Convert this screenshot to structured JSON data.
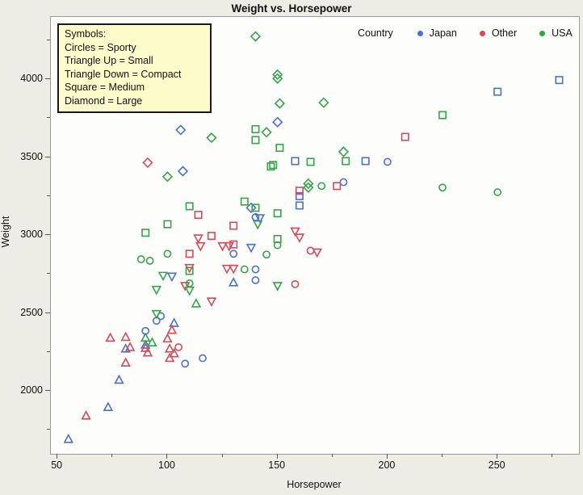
{
  "title": "Weight vs. Horsepower",
  "symbols_legend": {
    "lines": [
      "Symbols:",
      "Circles = Sporty",
      "Triangle Up = Small",
      "Triangle Down = Compact",
      "Square = Medium",
      "Diamond = Large"
    ]
  },
  "country_legend": {
    "label": "Country",
    "items": [
      {
        "label": "Japan",
        "color": "#4a6fd0"
      },
      {
        "label": "Other",
        "color": "#d44a5a"
      },
      {
        "label": "USA",
        "color": "#36a24a"
      }
    ]
  },
  "chart_data": {
    "type": "scatter",
    "title": "Weight vs. Horsepower",
    "xlabel": "Horsepower",
    "ylabel": "Weight",
    "xlim": [
      47,
      287
    ],
    "ylim": [
      1596,
      4400
    ],
    "grid": false,
    "x_ticks_major": [
      50,
      100,
      150,
      200,
      250
    ],
    "x_ticks_minor": [
      75,
      125,
      175,
      225,
      275
    ],
    "y_ticks_major": [
      2000,
      2500,
      3000,
      3500,
      4000
    ],
    "y_ticks_minor": [
      1750,
      2250,
      2750,
      3250,
      3750,
      4250
    ],
    "symbol_map": {
      "Sporty": "circle",
      "Small": "triangle-up",
      "Compact": "triangle-down",
      "Medium": "square",
      "Large": "diamond"
    },
    "series": [
      {
        "name": "Japan",
        "color": "#4a6fd0",
        "points": [
          [
            106,
            3675,
            "Large"
          ],
          [
            107,
            3410,
            "Large"
          ],
          [
            150,
            3725,
            "Large"
          ],
          [
            138,
            3175,
            "Large"
          ],
          [
            158,
            3475,
            "Medium"
          ],
          [
            190,
            3475,
            "Medium"
          ],
          [
            250,
            3920,
            "Medium"
          ],
          [
            278,
            3995,
            "Medium"
          ],
          [
            160,
            3250,
            "Medium"
          ],
          [
            160,
            3190,
            "Medium"
          ],
          [
            200,
            3470,
            "Sporty"
          ],
          [
            180,
            3340,
            "Sporty"
          ],
          [
            140,
            3115,
            "Sporty"
          ],
          [
            130,
            2880,
            "Sporty"
          ],
          [
            140,
            2780,
            "Sporty"
          ],
          [
            140,
            2710,
            "Sporty"
          ],
          [
            97,
            2480,
            "Sporty"
          ],
          [
            95,
            2450,
            "Sporty"
          ],
          [
            90,
            2385,
            "Sporty"
          ],
          [
            108,
            2175,
            "Sporty"
          ],
          [
            116,
            2210,
            "Sporty"
          ],
          [
            142,
            3110,
            "Compact"
          ],
          [
            138,
            2920,
            "Compact"
          ],
          [
            102,
            2735,
            "Compact"
          ],
          [
            130,
            2695,
            "Small"
          ],
          [
            103,
            2435,
            "Small"
          ],
          [
            90,
            2295,
            "Small"
          ],
          [
            81,
            2270,
            "Small"
          ],
          [
            78,
            2070,
            "Small"
          ],
          [
            73,
            1895,
            "Small"
          ],
          [
            55,
            1690,
            "Small"
          ]
        ]
      },
      {
        "name": "Other",
        "color": "#d44a5a",
        "points": [
          [
            91,
            3465,
            "Large"
          ],
          [
            208,
            3630,
            "Medium"
          ],
          [
            177,
            3315,
            "Medium"
          ],
          [
            160,
            3285,
            "Medium"
          ],
          [
            114,
            3130,
            "Medium"
          ],
          [
            120,
            2995,
            "Medium"
          ],
          [
            110,
            2880,
            "Medium"
          ],
          [
            130,
            3060,
            "Medium"
          ],
          [
            130,
            2940,
            "Medium"
          ],
          [
            114,
            2980,
            "Compact"
          ],
          [
            115,
            2930,
            "Compact"
          ],
          [
            125,
            2930,
            "Compact"
          ],
          [
            110,
            2790,
            "Compact"
          ],
          [
            108,
            2675,
            "Compact"
          ],
          [
            120,
            2575,
            "Compact"
          ],
          [
            158,
            3025,
            "Compact"
          ],
          [
            160,
            2985,
            "Compact"
          ],
          [
            128,
            2930,
            "Compact"
          ],
          [
            168,
            2890,
            "Compact"
          ],
          [
            127,
            2785,
            "Compact"
          ],
          [
            130,
            2785,
            "Compact"
          ],
          [
            165,
            2900,
            "Sporty"
          ],
          [
            158,
            2685,
            "Sporty"
          ],
          [
            105,
            2280,
            "Sporty"
          ],
          [
            74,
            2340,
            "Small"
          ],
          [
            81,
            2345,
            "Small"
          ],
          [
            83,
            2280,
            "Small"
          ],
          [
            81,
            2180,
            "Small"
          ],
          [
            90,
            2275,
            "Small"
          ],
          [
            91,
            2245,
            "Small"
          ],
          [
            100,
            2335,
            "Small"
          ],
          [
            102,
            2390,
            "Small"
          ],
          [
            101,
            2210,
            "Small"
          ],
          [
            101,
            2270,
            "Small"
          ],
          [
            103,
            2240,
            "Small"
          ],
          [
            63,
            1840,
            "Small"
          ]
        ]
      },
      {
        "name": "USA",
        "color": "#36a24a",
        "points": [
          [
            120,
            3625,
            "Large"
          ],
          [
            140,
            4275,
            "Large"
          ],
          [
            150,
            4030,
            "Large"
          ],
          [
            150,
            4005,
            "Large"
          ],
          [
            151,
            3845,
            "Large"
          ],
          [
            171,
            3850,
            "Large"
          ],
          [
            145,
            3660,
            "Large"
          ],
          [
            180,
            3535,
            "Large"
          ],
          [
            100,
            3375,
            "Large"
          ],
          [
            164,
            3330,
            "Large"
          ],
          [
            164,
            3305,
            "Large"
          ],
          [
            140,
            3680,
            "Medium"
          ],
          [
            140,
            3610,
            "Medium"
          ],
          [
            151,
            3560,
            "Medium"
          ],
          [
            148,
            3450,
            "Medium"
          ],
          [
            165,
            3470,
            "Medium"
          ],
          [
            181,
            3475,
            "Medium"
          ],
          [
            225,
            3770,
            "Medium"
          ],
          [
            147,
            3440,
            "Medium"
          ],
          [
            135,
            3215,
            "Medium"
          ],
          [
            140,
            3175,
            "Medium"
          ],
          [
            150,
            3140,
            "Medium"
          ],
          [
            110,
            3185,
            "Medium"
          ],
          [
            100,
            3070,
            "Medium"
          ],
          [
            90,
            3015,
            "Medium"
          ],
          [
            110,
            2770,
            "Medium"
          ],
          [
            150,
            2975,
            "Medium"
          ],
          [
            170,
            3315,
            "Sporty"
          ],
          [
            225,
            3305,
            "Sporty"
          ],
          [
            250,
            3275,
            "Sporty"
          ],
          [
            100,
            2880,
            "Sporty"
          ],
          [
            88,
            2845,
            "Sporty"
          ],
          [
            92,
            2835,
            "Sporty"
          ],
          [
            110,
            2690,
            "Sporty"
          ],
          [
            150,
            2935,
            "Sporty"
          ],
          [
            145,
            2875,
            "Sporty"
          ],
          [
            135,
            2780,
            "Sporty"
          ],
          [
            98,
            2740,
            "Compact"
          ],
          [
            110,
            2645,
            "Compact"
          ],
          [
            95,
            2650,
            "Compact"
          ],
          [
            141,
            3070,
            "Compact"
          ],
          [
            150,
            2675,
            "Compact"
          ],
          [
            95,
            2495,
            "Compact"
          ],
          [
            113,
            2560,
            "Small"
          ],
          [
            90,
            2340,
            "Small"
          ],
          [
            93,
            2310,
            "Small"
          ]
        ]
      }
    ]
  }
}
